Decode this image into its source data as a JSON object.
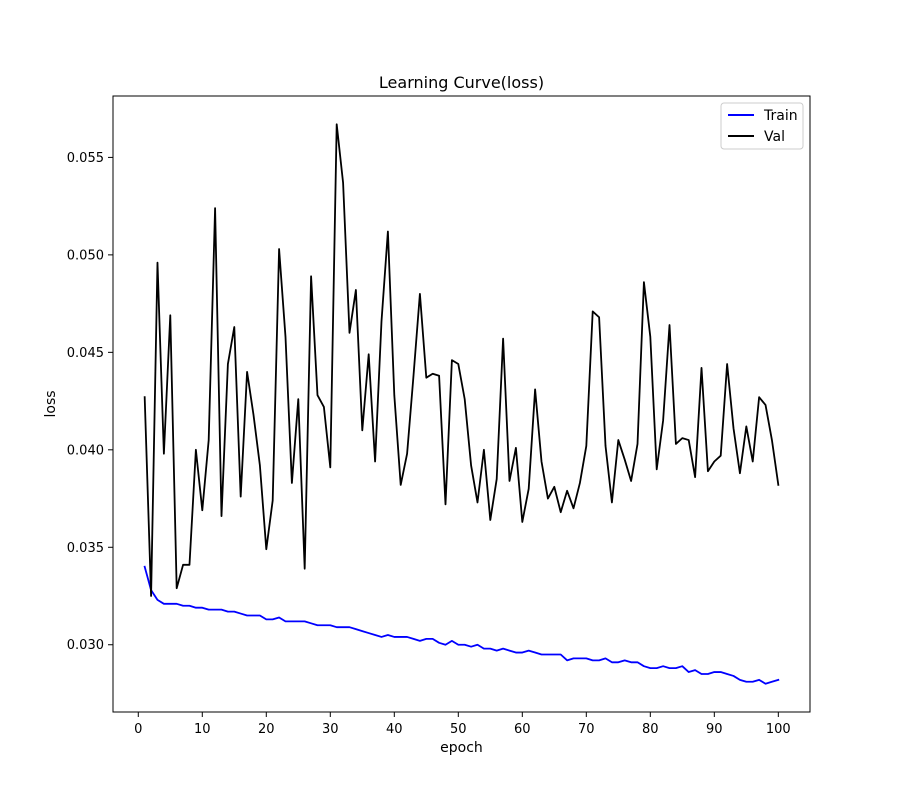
{
  "chart_data": {
    "type": "line",
    "title": "Learning Curve(loss)",
    "xlabel": "epoch",
    "ylabel": "loss",
    "xlim": [
      -3.95,
      104.95
    ],
    "ylim": [
      0.02655,
      0.05815
    ],
    "xticks": [
      0,
      10,
      20,
      30,
      40,
      50,
      60,
      70,
      80,
      90,
      100
    ],
    "xtick_labels": [
      "0",
      "10",
      "20",
      "30",
      "40",
      "50",
      "60",
      "70",
      "80",
      "90",
      "100"
    ],
    "yticks": [
      0.03,
      0.035,
      0.04,
      0.045,
      0.05,
      0.055
    ],
    "ytick_labels": [
      "0.030",
      "0.035",
      "0.040",
      "0.045",
      "0.050",
      "0.055"
    ],
    "grid": false,
    "legend_position": "top-right",
    "x": [
      1,
      2,
      3,
      4,
      5,
      6,
      7,
      8,
      9,
      10,
      11,
      12,
      13,
      14,
      15,
      16,
      17,
      18,
      19,
      20,
      21,
      22,
      23,
      24,
      25,
      26,
      27,
      28,
      29,
      30,
      31,
      32,
      33,
      34,
      35,
      36,
      37,
      38,
      39,
      40,
      41,
      42,
      43,
      44,
      45,
      46,
      47,
      48,
      49,
      50,
      51,
      52,
      53,
      54,
      55,
      56,
      57,
      58,
      59,
      60,
      61,
      62,
      63,
      64,
      65,
      66,
      67,
      68,
      69,
      70,
      71,
      72,
      73,
      74,
      75,
      76,
      77,
      78,
      79,
      80,
      81,
      82,
      83,
      84,
      85,
      86,
      87,
      88,
      89,
      90,
      91,
      92,
      93,
      94,
      95,
      96,
      97,
      98,
      99,
      100
    ],
    "series": [
      {
        "name": "Train",
        "color": "#0000ff",
        "values": [
          0.034,
          0.0328,
          0.0323,
          0.0321,
          0.0321,
          0.0321,
          0.032,
          0.032,
          0.0319,
          0.0319,
          0.0318,
          0.0318,
          0.0318,
          0.0317,
          0.0317,
          0.0316,
          0.0315,
          0.0315,
          0.0315,
          0.0313,
          0.0313,
          0.0314,
          0.0312,
          0.0312,
          0.0312,
          0.0312,
          0.0311,
          0.031,
          0.031,
          0.031,
          0.0309,
          0.0309,
          0.0309,
          0.0308,
          0.0307,
          0.0306,
          0.0305,
          0.0304,
          0.0305,
          0.0304,
          0.0304,
          0.0304,
          0.0303,
          0.0302,
          0.0303,
          0.0303,
          0.0301,
          0.03,
          0.0302,
          0.03,
          0.03,
          0.0299,
          0.03,
          0.0298,
          0.0298,
          0.0297,
          0.0298,
          0.0297,
          0.0296,
          0.0296,
          0.0297,
          0.0296,
          0.0295,
          0.0295,
          0.0295,
          0.0295,
          0.0292,
          0.0293,
          0.0293,
          0.0293,
          0.0292,
          0.0292,
          0.0293,
          0.0291,
          0.0291,
          0.0292,
          0.0291,
          0.0291,
          0.0289,
          0.0288,
          0.0288,
          0.0289,
          0.0288,
          0.0288,
          0.0289,
          0.0286,
          0.0287,
          0.0285,
          0.0285,
          0.0286,
          0.0286,
          0.0285,
          0.0284,
          0.0282,
          0.0281,
          0.0281,
          0.0282,
          0.028,
          0.0281,
          0.0282
        ]
      },
      {
        "name": "Val",
        "color": "#000000",
        "values": [
          0.0427,
          0.0325,
          0.0496,
          0.0398,
          0.0469,
          0.0329,
          0.0341,
          0.0341,
          0.04,
          0.0369,
          0.0405,
          0.0524,
          0.0366,
          0.0444,
          0.0463,
          0.0376,
          0.044,
          0.0418,
          0.0392,
          0.0349,
          0.0374,
          0.0503,
          0.0458,
          0.0383,
          0.0426,
          0.0339,
          0.0489,
          0.0428,
          0.0422,
          0.0391,
          0.0567,
          0.0537,
          0.046,
          0.0482,
          0.041,
          0.0449,
          0.0394,
          0.0466,
          0.0512,
          0.0428,
          0.0382,
          0.0398,
          0.0438,
          0.048,
          0.0437,
          0.0439,
          0.0438,
          0.0372,
          0.0446,
          0.0444,
          0.0426,
          0.0392,
          0.0373,
          0.04,
          0.0364,
          0.0385,
          0.0457,
          0.0384,
          0.0401,
          0.0363,
          0.038,
          0.0431,
          0.0394,
          0.0375,
          0.0381,
          0.0368,
          0.0379,
          0.037,
          0.0383,
          0.0402,
          0.0471,
          0.0468,
          0.0402,
          0.0373,
          0.0405,
          0.0395,
          0.0384,
          0.0403,
          0.0486,
          0.0458,
          0.039,
          0.0415,
          0.0464,
          0.0403,
          0.0406,
          0.0405,
          0.0386,
          0.0442,
          0.0389,
          0.0394,
          0.0397,
          0.0444,
          0.0411,
          0.0388,
          0.0412,
          0.0394,
          0.0427,
          0.0423,
          0.0405,
          0.0382
        ]
      }
    ]
  }
}
